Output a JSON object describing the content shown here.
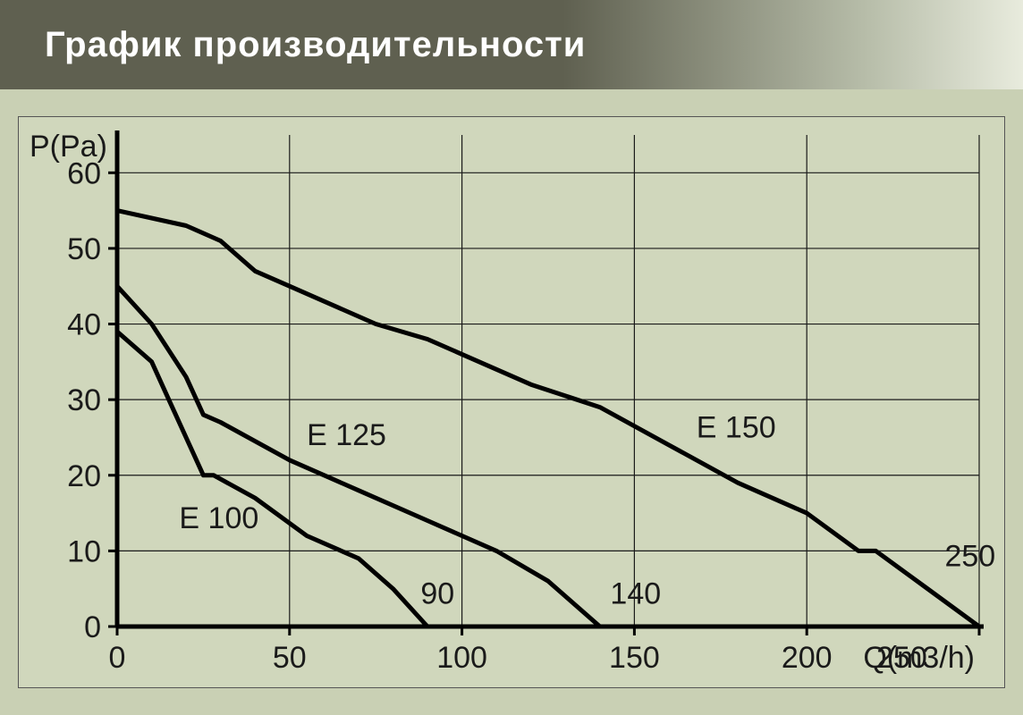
{
  "header": {
    "title": "График  производительности"
  },
  "chart": {
    "type": "line",
    "background_color": "#d0d7bc",
    "plot_background_color": "#d0d7bc",
    "axis_color": "#000000",
    "axis_width": 5,
    "grid_color": "#1a1a1a",
    "grid_width": 1.2,
    "line_color": "#000000",
    "line_width": 5,
    "tick_fontsize": 34,
    "label_fontsize": 34,
    "series_label_fontsize": 34,
    "x": {
      "label": "Q(m3/h)",
      "min": 0,
      "max": 250,
      "ticks": [
        0,
        50,
        100,
        150,
        200,
        250
      ],
      "grid_at": [
        50,
        100,
        150,
        200,
        250
      ]
    },
    "y": {
      "label": "P(Pa)",
      "min": 0,
      "max": 65,
      "ticks": [
        0,
        10,
        20,
        30,
        40,
        50,
        60
      ],
      "grid_at": [
        10,
        20,
        30,
        40,
        50,
        60
      ]
    },
    "series": [
      {
        "name": "E 100",
        "label_pos": {
          "x": 18,
          "y": 13
        },
        "terminal_label": "90",
        "terminal_pos": {
          "x": 88,
          "y": 3
        },
        "points": [
          [
            0,
            39
          ],
          [
            10,
            35
          ],
          [
            15,
            30
          ],
          [
            20,
            25
          ],
          [
            25,
            20
          ],
          [
            28,
            20
          ],
          [
            40,
            17
          ],
          [
            55,
            12
          ],
          [
            70,
            9
          ],
          [
            80,
            5
          ],
          [
            90,
            0
          ]
        ]
      },
      {
        "name": "E 125",
        "label_pos": {
          "x": 55,
          "y": 24
        },
        "terminal_label": "140",
        "terminal_pos": {
          "x": 143,
          "y": 3
        },
        "points": [
          [
            0,
            45
          ],
          [
            10,
            40
          ],
          [
            20,
            33
          ],
          [
            25,
            28
          ],
          [
            30,
            27
          ],
          [
            50,
            22
          ],
          [
            70,
            18
          ],
          [
            90,
            14
          ],
          [
            110,
            10
          ],
          [
            125,
            6
          ],
          [
            140,
            0
          ]
        ]
      },
      {
        "name": "E 150",
        "label_pos": {
          "x": 168,
          "y": 25
        },
        "terminal_label": "250",
        "terminal_pos": {
          "x": 240,
          "y": 8
        },
        "points": [
          [
            0,
            55
          ],
          [
            20,
            53
          ],
          [
            30,
            51
          ],
          [
            40,
            47
          ],
          [
            50,
            45
          ],
          [
            75,
            40
          ],
          [
            90,
            38
          ],
          [
            100,
            36
          ],
          [
            120,
            32
          ],
          [
            140,
            29
          ],
          [
            160,
            24
          ],
          [
            180,
            19
          ],
          [
            200,
            15
          ],
          [
            215,
            10
          ],
          [
            220,
            10
          ],
          [
            235,
            5
          ],
          [
            250,
            0
          ]
        ]
      }
    ]
  }
}
